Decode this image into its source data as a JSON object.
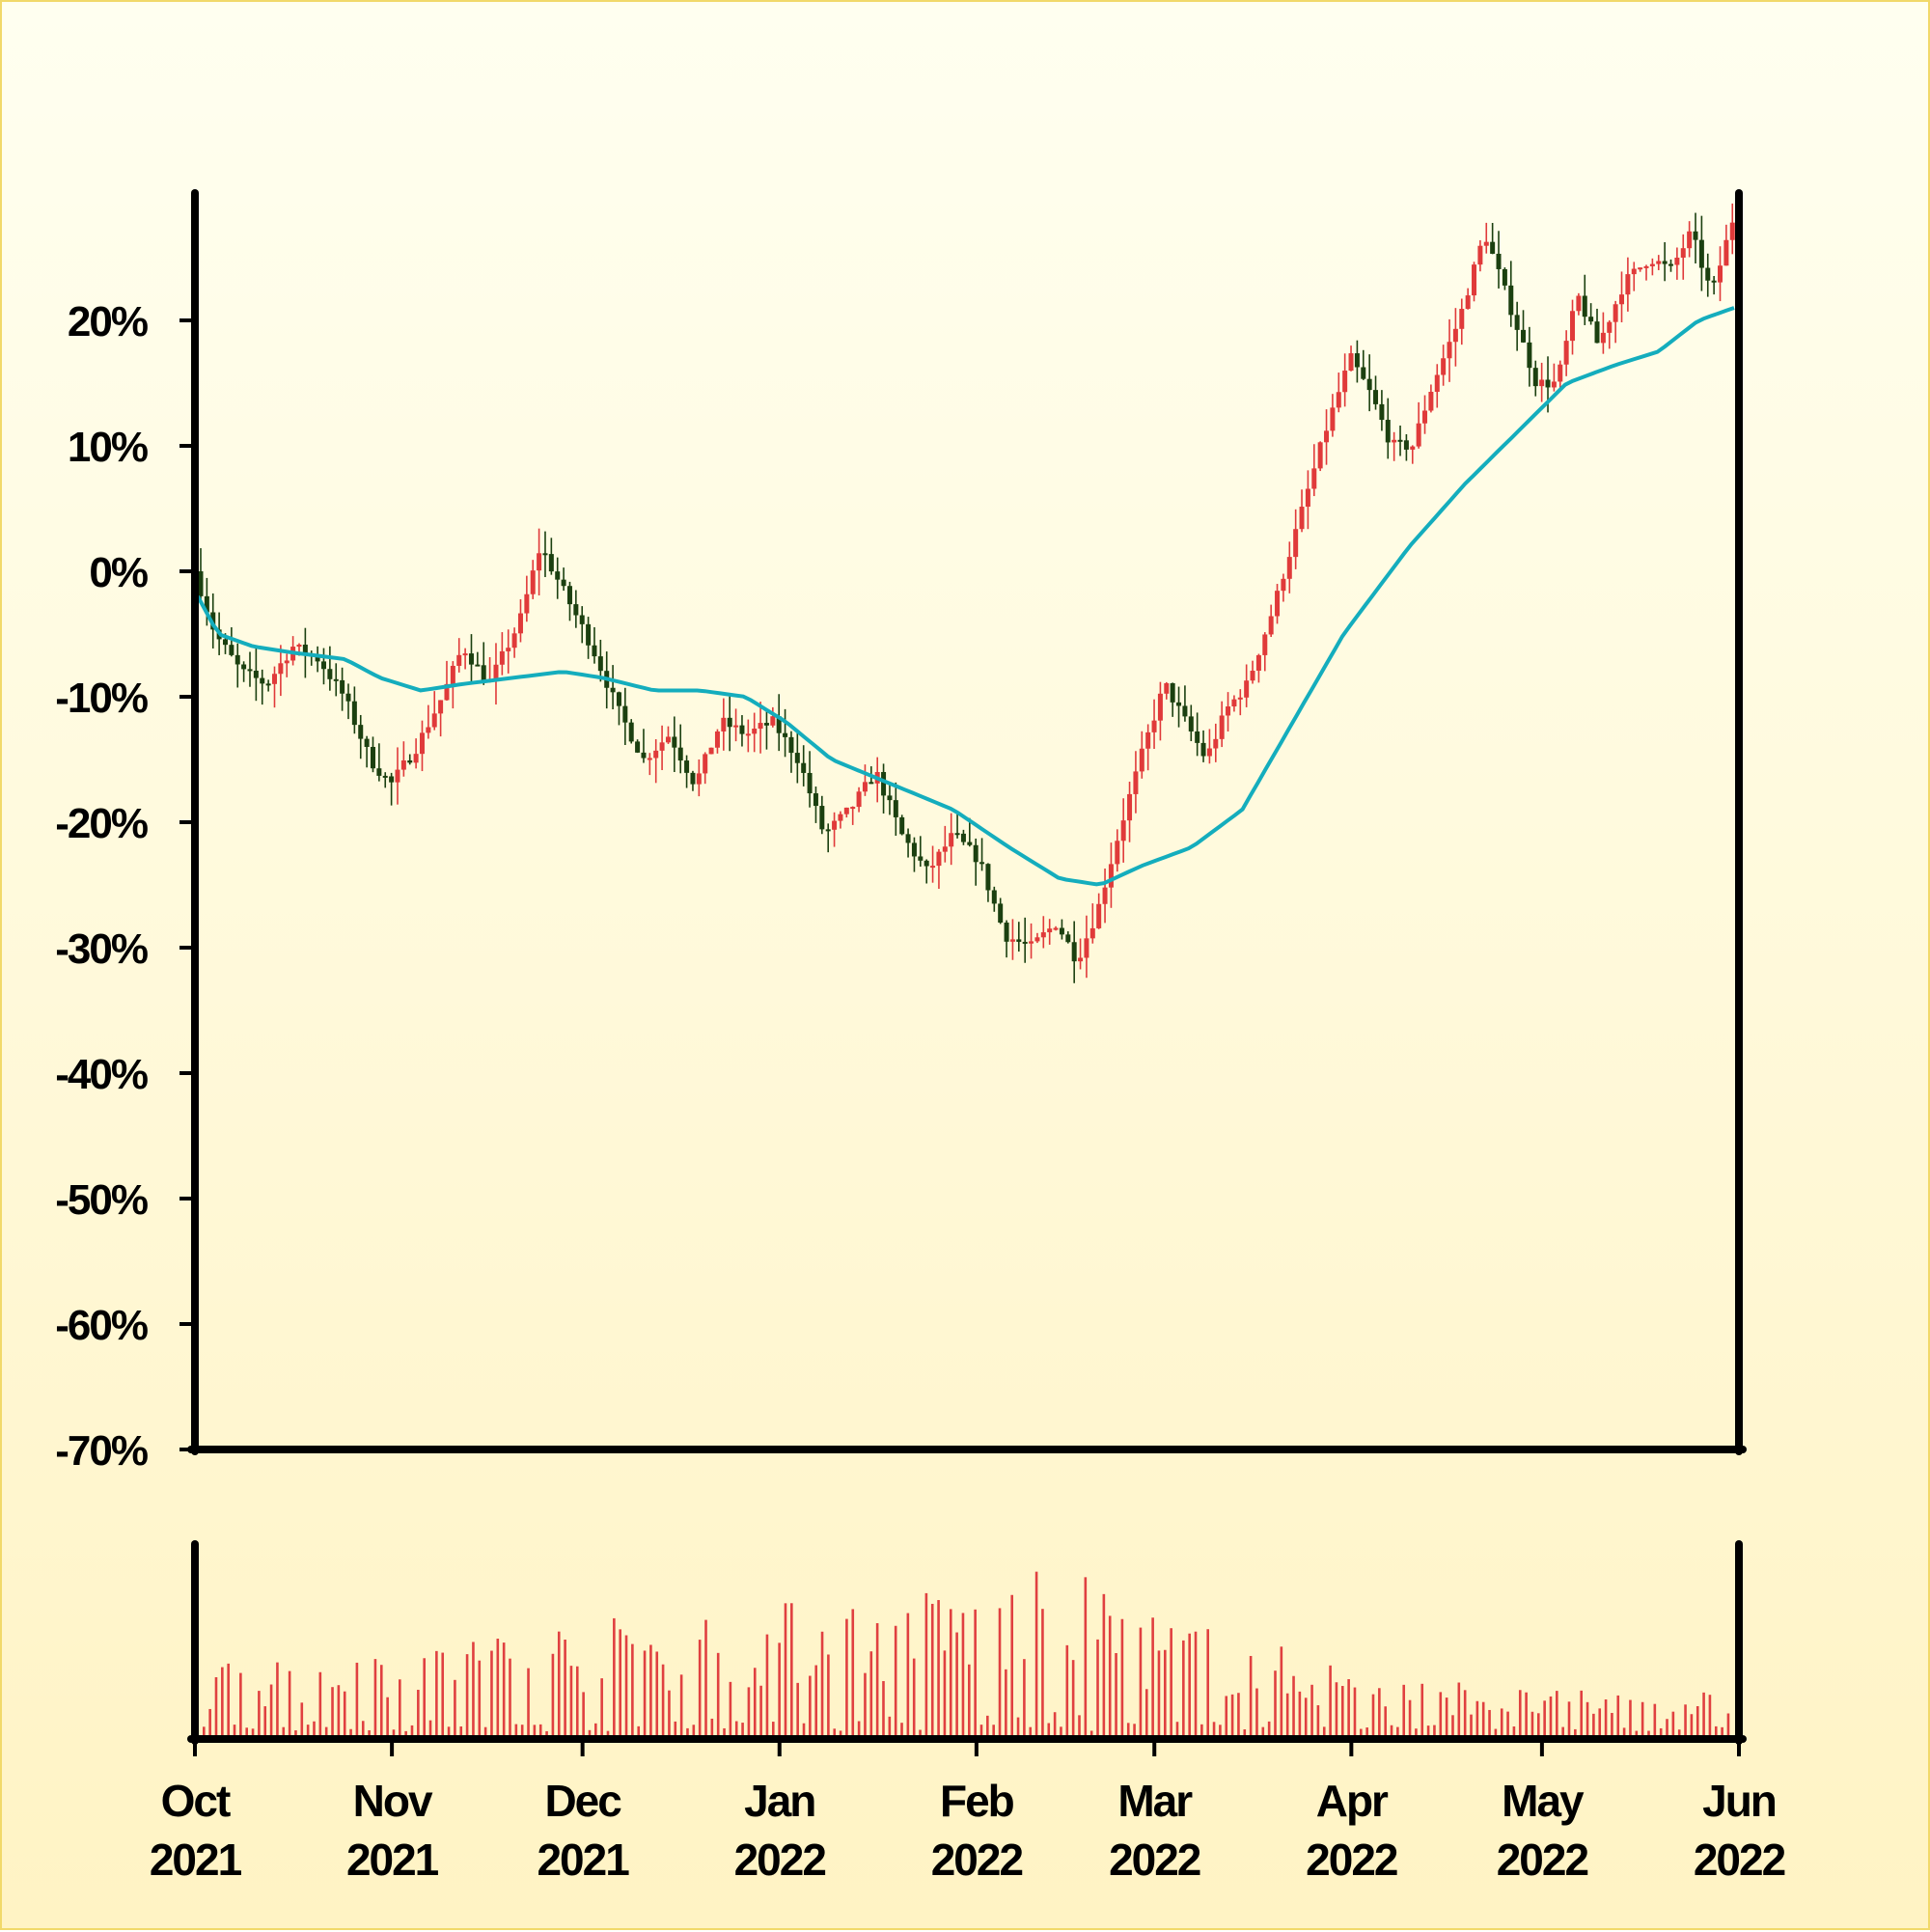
{
  "chart_data": [
    {
      "type": "candlestick",
      "x_start": "2021-10-01",
      "x_end": "2022-06-01",
      "ylim": [
        -0.7,
        0.3
      ],
      "y_ticks": [
        -0.7,
        -0.6,
        -0.5,
        -0.4,
        -0.3,
        -0.2,
        -0.1,
        0.0,
        0.1,
        0.2
      ],
      "y_tick_labels": [
        "-70%",
        "-60%",
        "-50%",
        "-40%",
        "-30%",
        "-20%",
        "-10%",
        "0%",
        "10%",
        "20%"
      ],
      "x_ticks": [
        {
          "date": "2021-10-01",
          "month": "Oct",
          "year": "2021"
        },
        {
          "date": "2021-11-01",
          "month": "Nov",
          "year": "2021"
        },
        {
          "date": "2021-12-01",
          "month": "Dec",
          "year": "2021"
        },
        {
          "date": "2022-01-01",
          "month": "Jan",
          "year": "2022"
        },
        {
          "date": "2022-02-01",
          "month": "Feb",
          "year": "2022"
        },
        {
          "date": "2022-03-01",
          "month": "Mar",
          "year": "2022"
        },
        {
          "date": "2022-04-01",
          "month": "Apr",
          "year": "2022"
        },
        {
          "date": "2022-05-01",
          "month": "May",
          "year": "2022"
        },
        {
          "date": "2022-06-01",
          "month": "Jun",
          "year": "2022"
        }
      ],
      "close_path": [
        [
          "2021-10-01",
          0.0
        ],
        [
          "2021-10-05",
          -0.05
        ],
        [
          "2021-10-10",
          -0.08
        ],
        [
          "2021-10-15",
          -0.09
        ],
        [
          "2021-10-20",
          -0.06
        ],
        [
          "2021-10-25",
          -0.07
        ],
        [
          "2021-10-30",
          -0.1
        ],
        [
          "2021-11-04",
          -0.15
        ],
        [
          "2021-11-08",
          -0.17
        ],
        [
          "2021-11-13",
          -0.14
        ],
        [
          "2021-11-18",
          -0.1
        ],
        [
          "2021-11-22",
          -0.06
        ],
        [
          "2021-11-27",
          -0.09
        ],
        [
          "2021-12-03",
          -0.04
        ],
        [
          "2021-12-07",
          0.02
        ],
        [
          "2021-12-12",
          -0.02
        ],
        [
          "2021-12-17",
          -0.06
        ],
        [
          "2021-12-22",
          -0.11
        ],
        [
          "2021-12-27",
          -0.15
        ],
        [
          "2022-01-01",
          -0.13
        ],
        [
          "2022-01-06",
          -0.17
        ],
        [
          "2022-01-11",
          -0.12
        ],
        [
          "2022-01-16",
          -0.13
        ],
        [
          "2022-01-21",
          -0.12
        ],
        [
          "2022-01-26",
          -0.15
        ],
        [
          "2022-01-31",
          -0.21
        ],
        [
          "2022-02-05",
          -0.19
        ],
        [
          "2022-02-10",
          -0.16
        ],
        [
          "2022-02-15",
          -0.21
        ],
        [
          "2022-02-20",
          -0.24
        ],
        [
          "2022-02-25",
          -0.21
        ],
        [
          "2022-03-02",
          -0.23
        ],
        [
          "2022-03-07",
          -0.29
        ],
        [
          "2022-03-12",
          -0.3
        ],
        [
          "2022-03-17",
          -0.28
        ],
        [
          "2022-03-21",
          -0.31
        ],
        [
          "2022-03-25",
          -0.27
        ],
        [
          "2022-03-29",
          -0.21
        ],
        [
          "2022-04-03",
          -0.14
        ],
        [
          "2022-04-07",
          -0.09
        ],
        [
          "2022-04-11",
          -0.12
        ],
        [
          "2022-04-15",
          -0.15
        ],
        [
          "2022-04-19",
          -0.11
        ],
        [
          "2022-04-23",
          -0.09
        ],
        [
          "2022-04-28",
          -0.03
        ],
        [
          "2022-05-03",
          0.04
        ],
        [
          "2022-05-08",
          0.11
        ],
        [
          "2022-05-13",
          0.17
        ],
        [
          "2022-05-17",
          0.14
        ],
        [
          "2022-05-21",
          0.1
        ],
        [
          "2022-05-25",
          0.1
        ],
        [
          "2022-05-29",
          0.15
        ],
        [
          "2022-06-03",
          0.2
        ],
        [
          "2022-06-08",
          0.27
        ],
        [
          "2022-06-13",
          0.21
        ],
        [
          "2022-06-18",
          0.15
        ],
        [
          "2022-06-22",
          0.15
        ],
        [
          "2022-06-26",
          0.22
        ],
        [
          "2022-06-30",
          0.18
        ],
        [
          "2022-07-05",
          0.23
        ],
        [
          "2022-07-10",
          0.25
        ],
        [
          "2022-07-14",
          0.24
        ],
        [
          "2022-07-18",
          0.27
        ],
        [
          "2022-07-22",
          0.22
        ],
        [
          "2022-07-26",
          0.28
        ]
      ],
      "moving_average": [
        [
          "2021-10-01",
          -0.02
        ],
        [
          "2021-10-05",
          -0.05
        ],
        [
          "2021-10-12",
          -0.06
        ],
        [
          "2021-10-20",
          -0.065
        ],
        [
          "2021-10-30",
          -0.07
        ],
        [
          "2021-11-06",
          -0.085
        ],
        [
          "2021-11-14",
          -0.095
        ],
        [
          "2021-11-22",
          -0.09
        ],
        [
          "2021-12-02",
          -0.085
        ],
        [
          "2021-12-12",
          -0.08
        ],
        [
          "2021-12-20",
          -0.085
        ],
        [
          "2021-12-30",
          -0.095
        ],
        [
          "2022-01-08",
          -0.095
        ],
        [
          "2022-01-17",
          -0.1
        ],
        [
          "2022-01-25",
          -0.12
        ],
        [
          "2022-02-03",
          -0.15
        ],
        [
          "2022-02-15",
          -0.17
        ],
        [
          "2022-02-27",
          -0.19
        ],
        [
          "2022-03-10",
          -0.22
        ],
        [
          "2022-03-20",
          -0.245
        ],
        [
          "2022-03-28",
          -0.25
        ],
        [
          "2022-04-05",
          -0.235
        ],
        [
          "2022-04-15",
          -0.22
        ],
        [
          "2022-04-25",
          -0.19
        ],
        [
          "2022-05-05",
          -0.12
        ],
        [
          "2022-05-15",
          -0.05
        ],
        [
          "2022-05-28",
          0.02
        ],
        [
          "2022-06-08",
          0.07
        ],
        [
          "2022-06-18",
          0.11
        ],
        [
          "2022-06-28",
          0.15
        ],
        [
          "2022-07-08",
          0.165
        ],
        [
          "2022-07-16",
          0.175
        ],
        [
          "2022-07-24",
          0.2
        ],
        [
          "2022-07-31",
          0.21
        ]
      ],
      "colors": {
        "up": "#e03a3a",
        "down": "#1b4010",
        "moving_average": "#14adbd",
        "volume": "#e04040",
        "axis": "#000000"
      }
    },
    {
      "type": "bar",
      "name": "volume",
      "x_start": "2021-10-01",
      "x_end": "2022-06-01",
      "volume_profile": [
        [
          "2021-10-01",
          0.4
        ],
        [
          "2021-11-01",
          0.55
        ],
        [
          "2021-12-01",
          0.65
        ],
        [
          "2022-01-01",
          0.75
        ],
        [
          "2022-02-01",
          0.85
        ],
        [
          "2022-02-15",
          0.95
        ],
        [
          "2022-03-01",
          0.7
        ],
        [
          "2022-04-01",
          0.4
        ],
        [
          "2022-05-01",
          0.25
        ],
        [
          "2022-06-01",
          0.25
        ]
      ]
    }
  ]
}
